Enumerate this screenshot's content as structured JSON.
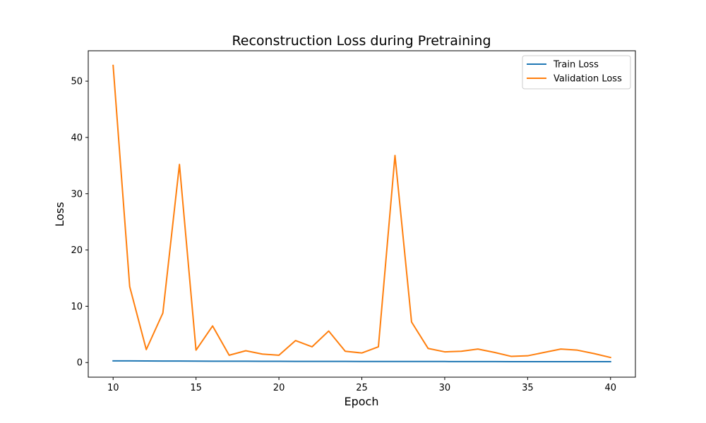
{
  "chart_data": {
    "type": "line",
    "title": "Reconstruction Loss during Pretraining",
    "xlabel": "Epoch",
    "ylabel": "Loss",
    "xlim": [
      8.5,
      41.5
    ],
    "ylim": [
      -2.6,
      55.4
    ],
    "xticks": [
      10,
      15,
      20,
      25,
      30,
      35,
      40
    ],
    "yticks": [
      0,
      10,
      20,
      30,
      40,
      50
    ],
    "grid": false,
    "legend_position": "top-right",
    "x": [
      10,
      11,
      12,
      13,
      14,
      15,
      16,
      17,
      18,
      19,
      20,
      21,
      22,
      23,
      24,
      25,
      26,
      27,
      28,
      29,
      30,
      31,
      32,
      33,
      34,
      35,
      36,
      37,
      38,
      39,
      40
    ],
    "series": [
      {
        "name": "Train Loss",
        "color": "#1f77b4",
        "values": [
          0.3,
          0.29,
          0.28,
          0.27,
          0.26,
          0.25,
          0.24,
          0.23,
          0.23,
          0.22,
          0.22,
          0.21,
          0.21,
          0.2,
          0.2,
          0.19,
          0.19,
          0.19,
          0.18,
          0.18,
          0.18,
          0.17,
          0.17,
          0.17,
          0.16,
          0.16,
          0.16,
          0.15,
          0.15,
          0.15,
          0.15
        ]
      },
      {
        "name": "Validation Loss",
        "color": "#ff7f0e",
        "values": [
          52.8,
          13.5,
          2.3,
          8.8,
          35.2,
          2.2,
          6.5,
          1.3,
          2.1,
          1.5,
          1.3,
          3.9,
          2.8,
          5.6,
          2.0,
          1.7,
          2.8,
          36.8,
          7.2,
          2.5,
          1.9,
          2.0,
          2.4,
          1.8,
          1.1,
          1.2,
          1.8,
          2.4,
          2.2,
          1.6,
          0.9
        ]
      }
    ]
  }
}
